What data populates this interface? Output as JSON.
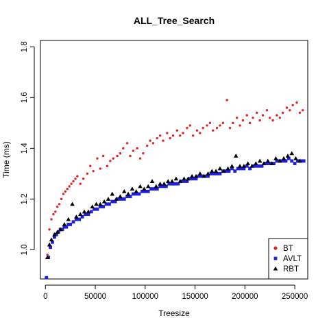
{
  "chart_data": {
    "type": "scatter",
    "title": "ALL_Tree_Search",
    "xlabel": "Treesize",
    "ylabel": "Time (ms)",
    "xlim": [
      -5000,
      263000
    ],
    "ylim": [
      0.885,
      1.825
    ],
    "x_ticks": [
      0,
      50000,
      100000,
      150000,
      200000,
      250000
    ],
    "x_tick_labels": [
      "0",
      "50000",
      "100000",
      "150000",
      "200000",
      "250000"
    ],
    "y_ticks": [
      1.0,
      1.2,
      1.4,
      1.6,
      1.8
    ],
    "y_tick_labels": [
      "1.0",
      "1.2",
      "1.4",
      "1.6",
      "1.8"
    ],
    "grid": false,
    "legend_position": "bottom-right",
    "series": [
      {
        "name": "BT",
        "color": "#e32424",
        "marker": "circle",
        "points": [
          [
            2000,
            0.98
          ],
          [
            4000,
            1.08
          ],
          [
            6000,
            1.12
          ],
          [
            8000,
            1.14
          ],
          [
            10000,
            1.15
          ],
          [
            12000,
            1.17
          ],
          [
            14000,
            1.18
          ],
          [
            16000,
            1.2
          ],
          [
            18000,
            1.22
          ],
          [
            20000,
            1.23
          ],
          [
            22000,
            1.24
          ],
          [
            24000,
            1.25
          ],
          [
            26000,
            1.26
          ],
          [
            28000,
            1.27
          ],
          [
            30000,
            1.28
          ],
          [
            32000,
            1.29
          ],
          [
            35000,
            1.26
          ],
          [
            38000,
            1.28
          ],
          [
            42000,
            1.3
          ],
          [
            45000,
            1.33
          ],
          [
            48000,
            1.31
          ],
          [
            52000,
            1.36
          ],
          [
            55000,
            1.32
          ],
          [
            58000,
            1.37
          ],
          [
            62000,
            1.33
          ],
          [
            65000,
            1.35
          ],
          [
            68000,
            1.36
          ],
          [
            72000,
            1.37
          ],
          [
            75000,
            1.38
          ],
          [
            78000,
            1.4
          ],
          [
            82000,
            1.42
          ],
          [
            85000,
            1.37
          ],
          [
            88000,
            1.39
          ],
          [
            92000,
            1.4
          ],
          [
            95000,
            1.36
          ],
          [
            98000,
            1.38
          ],
          [
            102000,
            1.41
          ],
          [
            105000,
            1.43
          ],
          [
            108000,
            1.42
          ],
          [
            112000,
            1.44
          ],
          [
            115000,
            1.45
          ],
          [
            118000,
            1.43
          ],
          [
            122000,
            1.46
          ],
          [
            125000,
            1.44
          ],
          [
            128000,
            1.45
          ],
          [
            132000,
            1.47
          ],
          [
            135000,
            1.45
          ],
          [
            138000,
            1.46
          ],
          [
            142000,
            1.48
          ],
          [
            145000,
            1.49
          ],
          [
            148000,
            1.45
          ],
          [
            152000,
            1.47
          ],
          [
            155000,
            1.46
          ],
          [
            158000,
            1.48
          ],
          [
            162000,
            1.49
          ],
          [
            165000,
            1.5
          ],
          [
            168000,
            1.47
          ],
          [
            172000,
            1.48
          ],
          [
            175000,
            1.49
          ],
          [
            178000,
            1.5
          ],
          [
            182000,
            1.59
          ],
          [
            185000,
            1.48
          ],
          [
            188000,
            1.5
          ],
          [
            192000,
            1.52
          ],
          [
            195000,
            1.49
          ],
          [
            198000,
            1.51
          ],
          [
            202000,
            1.53
          ],
          [
            205000,
            1.5
          ],
          [
            208000,
            1.52
          ],
          [
            212000,
            1.54
          ],
          [
            215000,
            1.51
          ],
          [
            218000,
            1.53
          ],
          [
            222000,
            1.55
          ],
          [
            225000,
            1.52
          ],
          [
            228000,
            1.51
          ],
          [
            232000,
            1.53
          ],
          [
            235000,
            1.52
          ],
          [
            238000,
            1.54
          ],
          [
            242000,
            1.56
          ],
          [
            245000,
            1.55
          ],
          [
            248000,
            1.57
          ],
          [
            252000,
            1.58
          ],
          [
            255000,
            1.54
          ],
          [
            258000,
            1.55
          ]
        ]
      },
      {
        "name": "AVLT",
        "color": "#1e1ee0",
        "marker": "square",
        "points": [
          [
            1000,
            0.89
          ],
          [
            3000,
            0.97
          ],
          [
            5000,
            1.01
          ],
          [
            7000,
            1.03
          ],
          [
            9000,
            1.05
          ],
          [
            11000,
            1.06
          ],
          [
            13000,
            1.07
          ],
          [
            15000,
            1.08
          ],
          [
            17000,
            1.08
          ],
          [
            19000,
            1.09
          ],
          [
            21000,
            1.09
          ],
          [
            23000,
            1.1
          ],
          [
            25000,
            1.1
          ],
          [
            28000,
            1.11
          ],
          [
            31000,
            1.12
          ],
          [
            34000,
            1.12
          ],
          [
            37000,
            1.13
          ],
          [
            40000,
            1.14
          ],
          [
            43000,
            1.14
          ],
          [
            46000,
            1.15
          ],
          [
            49000,
            1.16
          ],
          [
            52000,
            1.16
          ],
          [
            55000,
            1.17
          ],
          [
            58000,
            1.17
          ],
          [
            61000,
            1.18
          ],
          [
            64000,
            1.18
          ],
          [
            67000,
            1.19
          ],
          [
            70000,
            1.19
          ],
          [
            73000,
            1.2
          ],
          [
            76000,
            1.2
          ],
          [
            79000,
            1.2
          ],
          [
            82000,
            1.21
          ],
          [
            85000,
            1.21
          ],
          [
            88000,
            1.22
          ],
          [
            91000,
            1.22
          ],
          [
            94000,
            1.22
          ],
          [
            97000,
            1.23
          ],
          [
            100000,
            1.23
          ],
          [
            103000,
            1.23
          ],
          [
            106000,
            1.24
          ],
          [
            109000,
            1.24
          ],
          [
            112000,
            1.24
          ],
          [
            115000,
            1.25
          ],
          [
            118000,
            1.25
          ],
          [
            121000,
            1.25
          ],
          [
            124000,
            1.26
          ],
          [
            127000,
            1.26
          ],
          [
            130000,
            1.26
          ],
          [
            133000,
            1.26
          ],
          [
            136000,
            1.27
          ],
          [
            139000,
            1.27
          ],
          [
            142000,
            1.27
          ],
          [
            145000,
            1.28
          ],
          [
            148000,
            1.28
          ],
          [
            151000,
            1.28
          ],
          [
            154000,
            1.29
          ],
          [
            157000,
            1.29
          ],
          [
            160000,
            1.29
          ],
          [
            163000,
            1.29
          ],
          [
            166000,
            1.3
          ],
          [
            169000,
            1.3
          ],
          [
            172000,
            1.3
          ],
          [
            175000,
            1.3
          ],
          [
            178000,
            1.31
          ],
          [
            181000,
            1.31
          ],
          [
            184000,
            1.31
          ],
          [
            187000,
            1.32
          ],
          [
            190000,
            1.31
          ],
          [
            193000,
            1.32
          ],
          [
            196000,
            1.32
          ],
          [
            199000,
            1.32
          ],
          [
            202000,
            1.33
          ],
          [
            205000,
            1.32
          ],
          [
            208000,
            1.33
          ],
          [
            211000,
            1.33
          ],
          [
            214000,
            1.33
          ],
          [
            217000,
            1.33
          ],
          [
            220000,
            1.34
          ],
          [
            223000,
            1.34
          ],
          [
            226000,
            1.34
          ],
          [
            229000,
            1.34
          ],
          [
            232000,
            1.35
          ],
          [
            235000,
            1.35
          ],
          [
            238000,
            1.35
          ],
          [
            241000,
            1.35
          ],
          [
            244000,
            1.36
          ],
          [
            247000,
            1.35
          ],
          [
            250000,
            1.34
          ],
          [
            253000,
            1.35
          ],
          [
            256000,
            1.35
          ],
          [
            259000,
            1.35
          ]
        ]
      },
      {
        "name": "RBT",
        "color": "#000000",
        "marker": "triangle",
        "points": [
          [
            2000,
            0.97
          ],
          [
            4000,
            1.02
          ],
          [
            6000,
            1.04
          ],
          [
            9000,
            1.06
          ],
          [
            12000,
            1.07
          ],
          [
            15000,
            1.08
          ],
          [
            19000,
            1.1
          ],
          [
            23000,
            1.12
          ],
          [
            27000,
            1.18
          ],
          [
            31000,
            1.13
          ],
          [
            35000,
            1.14
          ],
          [
            39000,
            1.15
          ],
          [
            43000,
            1.15
          ],
          [
            47000,
            1.17
          ],
          [
            51000,
            1.18
          ],
          [
            55000,
            1.18
          ],
          [
            59000,
            1.19
          ],
          [
            63000,
            1.2
          ],
          [
            67000,
            1.22
          ],
          [
            71000,
            1.2
          ],
          [
            75000,
            1.21
          ],
          [
            79000,
            1.23
          ],
          [
            83000,
            1.22
          ],
          [
            87000,
            1.24
          ],
          [
            91000,
            1.23
          ],
          [
            95000,
            1.25
          ],
          [
            99000,
            1.24
          ],
          [
            103000,
            1.25
          ],
          [
            107000,
            1.27
          ],
          [
            111000,
            1.25
          ],
          [
            115000,
            1.26
          ],
          [
            119000,
            1.26
          ],
          [
            123000,
            1.27
          ],
          [
            127000,
            1.27
          ],
          [
            131000,
            1.28
          ],
          [
            135000,
            1.27
          ],
          [
            139000,
            1.28
          ],
          [
            143000,
            1.28
          ],
          [
            147000,
            1.29
          ],
          [
            151000,
            1.29
          ],
          [
            155000,
            1.3
          ],
          [
            159000,
            1.29
          ],
          [
            163000,
            1.3
          ],
          [
            167000,
            1.31
          ],
          [
            171000,
            1.31
          ],
          [
            175000,
            1.32
          ],
          [
            179000,
            1.31
          ],
          [
            183000,
            1.32
          ],
          [
            187000,
            1.33
          ],
          [
            191000,
            1.37
          ],
          [
            195000,
            1.33
          ],
          [
            199000,
            1.33
          ],
          [
            203000,
            1.34
          ],
          [
            207000,
            1.33
          ],
          [
            211000,
            1.34
          ],
          [
            215000,
            1.35
          ],
          [
            219000,
            1.34
          ],
          [
            223000,
            1.35
          ],
          [
            227000,
            1.34
          ],
          [
            231000,
            1.36
          ],
          [
            235000,
            1.35
          ],
          [
            239000,
            1.36
          ],
          [
            243000,
            1.37
          ],
          [
            247000,
            1.38
          ],
          [
            251000,
            1.36
          ],
          [
            255000,
            1.35
          ]
        ]
      }
    ]
  }
}
